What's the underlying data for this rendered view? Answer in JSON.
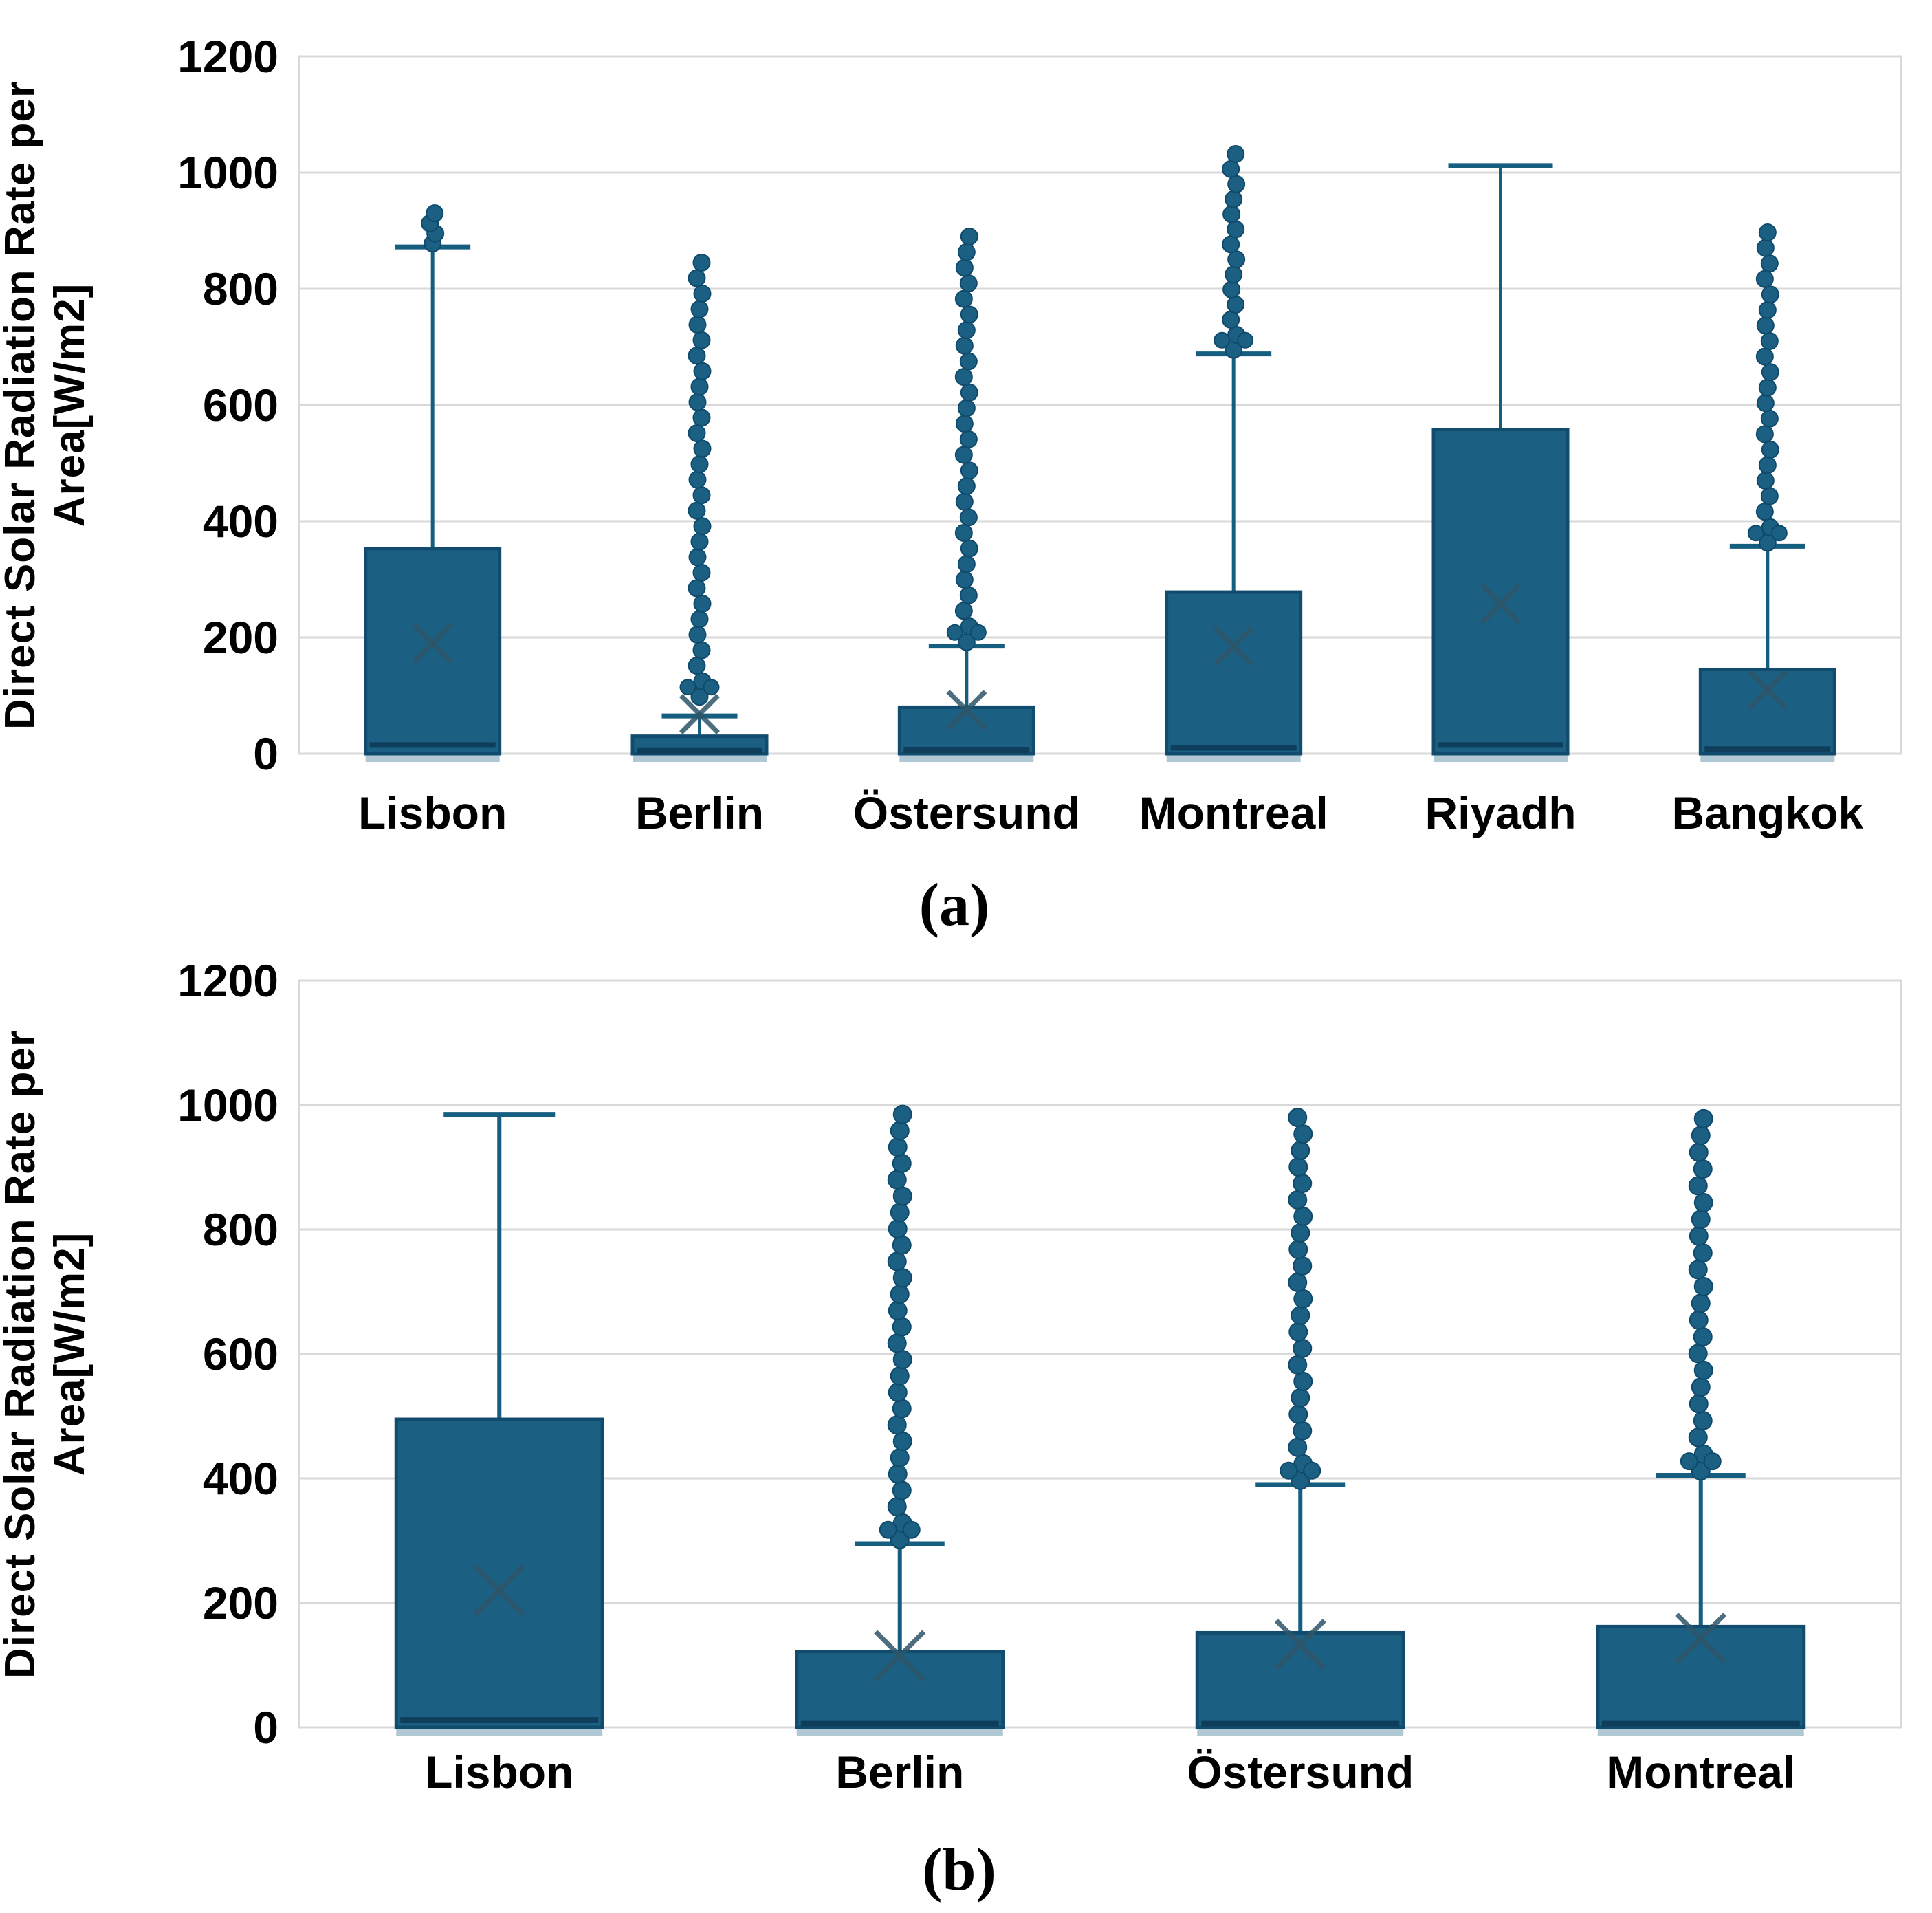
{
  "style": {
    "background": "#FFFFFF",
    "box_fill": "#1B5F82",
    "box_border": "#114C6E",
    "median_color": "#0E3E5C",
    "whisker_color": "#155E80",
    "dot_fill": "#1B5F82",
    "dot_border": "#0F4A6B",
    "mean_color": "#2E5568",
    "grid_color": "#D9D9D9",
    "pale_base": "#AFC8D4",
    "text_color": "#000000"
  },
  "chart_data": [
    {
      "id": "a",
      "caption": "(a)",
      "type": "boxplot",
      "ylabel_line1": "Direct Solar Radiation Rate per",
      "ylabel_line2": "Area[W/m2]",
      "ylim": [
        0,
        1200
      ],
      "yticks": [
        0,
        200,
        400,
        600,
        800,
        1000,
        1200
      ],
      "grid": true,
      "categories": [
        "Lisbon",
        "Berlin",
        "Östersund",
        "Montreal",
        "Riyadh",
        "Bangkok"
      ],
      "boxes": [
        {
          "category": "Lisbon",
          "q0": 0,
          "median": 15,
          "q3": 353,
          "mean": 190,
          "whisker_top": 872,
          "outliers": {
            "min": 878,
            "max": 930,
            "count": 4
          }
        },
        {
          "category": "Berlin",
          "q0": 0,
          "median": 5,
          "q3": 30,
          "mean": 68,
          "whisker_top": 65,
          "outliers": {
            "min": 98,
            "max": 845,
            "count": 29
          }
        },
        {
          "category": "Östersund",
          "q0": 0,
          "median": 6,
          "q3": 80,
          "mean": 75,
          "whisker_top": 185,
          "outliers": {
            "min": 192,
            "max": 890,
            "count": 27
          }
        },
        {
          "category": "Montreal",
          "q0": 0,
          "median": 10,
          "q3": 278,
          "mean": 185,
          "whisker_top": 688,
          "outliers": {
            "min": 695,
            "max": 1032,
            "count": 14
          }
        },
        {
          "category": "Riyadh",
          "q0": 0,
          "median": 15,
          "q3": 558,
          "mean": 258,
          "whisker_top": 1012,
          "outliers": null
        },
        {
          "category": "Bangkok",
          "q0": 0,
          "median": 8,
          "q3": 145,
          "mean": 110,
          "whisker_top": 357,
          "outliers": {
            "min": 363,
            "max": 897,
            "count": 21
          }
        }
      ]
    },
    {
      "id": "b",
      "caption": "(b)",
      "type": "boxplot",
      "ylabel_line1": "Direct Solar Radiation Rate per",
      "ylabel_line2": "Area[W/m2]",
      "ylim": [
        0,
        1200
      ],
      "yticks": [
        0,
        200,
        400,
        600,
        800,
        1000,
        1200
      ],
      "grid": true,
      "categories": [
        "Lisbon",
        "Berlin",
        "Östersund",
        "Montreal"
      ],
      "boxes": [
        {
          "category": "Lisbon",
          "q0": 0,
          "median": 12,
          "q3": 495,
          "mean": 220,
          "whisker_top": 985,
          "outliers": null
        },
        {
          "category": "Berlin",
          "q0": 0,
          "median": 6,
          "q3": 122,
          "mean": 115,
          "whisker_top": 295,
          "outliers": {
            "min": 302,
            "max": 985,
            "count": 27
          }
        },
        {
          "category": "Östersund",
          "q0": 0,
          "median": 6,
          "q3": 152,
          "mean": 133,
          "whisker_top": 390,
          "outliers": {
            "min": 397,
            "max": 980,
            "count": 23
          }
        },
        {
          "category": "Montreal",
          "q0": 0,
          "median": 6,
          "q3": 162,
          "mean": 143,
          "whisker_top": 405,
          "outliers": {
            "min": 412,
            "max": 978,
            "count": 22
          }
        }
      ]
    }
  ]
}
